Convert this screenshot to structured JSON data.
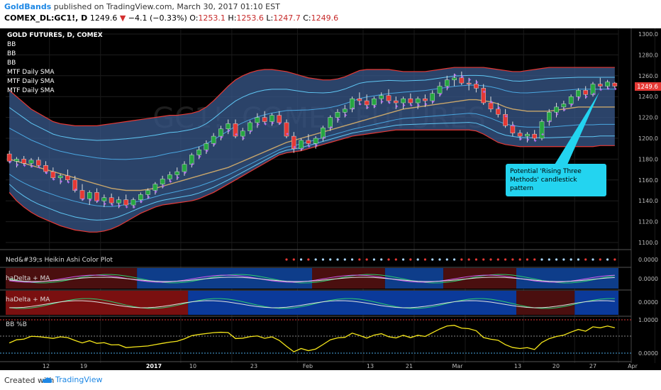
{
  "header": {
    "publisher": "GoldBands",
    "published_text": "published on TradingView.com, March 30, 2017 01:10 EST",
    "symbol": "COMEX_DL:GC1!, D",
    "price": "1249.6",
    "change": "−4.1 (−0.33%)",
    "o_label": "O:",
    "o_value": "1253.1",
    "h_label": "H:",
    "h_value": "1253.6",
    "l_label": "L:",
    "l_value": "1247.7",
    "c_label": "C:",
    "c_value": "1249.6"
  },
  "footer": {
    "created_text": "Created with",
    "brand": "TradingView"
  },
  "legend": {
    "title": "GOLD FUTURES, D, COMEX",
    "items": [
      "BB",
      "BB",
      "BB",
      "MTF Daily SMA",
      "MTF Daily SMA",
      "MTF Daily SMA"
    ]
  },
  "annotation": "Potential 'Rising Three Methods' candlestick pattern",
  "annotation_lines": [
    "Potential 'Rising Three",
    "Methods' candlestick",
    "pattern"
  ],
  "price_tag": "1249.6",
  "watermark": "GC1!, COMEX FUTURES",
  "panes": {
    "heikin": {
      "title": "Ned&#39;s Heikin Ashi Color Plot",
      "value": "0.0000"
    },
    "hadelta1": {
      "title": "haDelta + MA",
      "value": "0.0000"
    },
    "hadelta2": {
      "title": "haDelta + MA",
      "value": "0.0000"
    },
    "bbpct": {
      "title": "BB %B",
      "top_value": "1.0000",
      "bottom_value": "0.0000"
    }
  },
  "colors": {
    "up": "#26a641",
    "down": "#e53935",
    "upper_band": "#e53935",
    "band_fill": "#3a5a8c",
    "sma_mid": "#c8a66b",
    "inner_band": "#5fc6f3",
    "trail": "#b56cf0",
    "bbpct_line": "#f5e61a",
    "callout_bg": "#23d4f0"
  },
  "chart_data": {
    "type": "candlestick",
    "title": "GOLD FUTURES, D, COMEX",
    "y_ticks": [
      "1300.0",
      "1280.0",
      "1260.0",
      "1240.0",
      "1220.0",
      "1200.0",
      "1180.0",
      "1160.0",
      "1140.0",
      "1120.0",
      "1100.0"
    ],
    "ylim": [
      1100,
      1300
    ],
    "x_ticks": [
      "12",
      "19",
      "2017",
      "10",
      "23",
      "Feb",
      "13",
      "21",
      "Mar",
      "13",
      "20",
      "27",
      "Apr"
    ],
    "candles": [
      [
        1185,
        1188,
        1176,
        1178
      ],
      [
        1178,
        1182,
        1172,
        1180
      ],
      [
        1180,
        1183,
        1174,
        1176
      ],
      [
        1176,
        1181,
        1172,
        1179
      ],
      [
        1179,
        1182,
        1172,
        1174
      ],
      [
        1174,
        1178,
        1166,
        1168
      ],
      [
        1168,
        1172,
        1160,
        1162
      ],
      [
        1162,
        1166,
        1156,
        1164
      ],
      [
        1164,
        1170,
        1158,
        1160
      ],
      [
        1160,
        1164,
        1148,
        1150
      ],
      [
        1150,
        1156,
        1140,
        1142
      ],
      [
        1142,
        1150,
        1136,
        1148
      ],
      [
        1148,
        1152,
        1138,
        1140
      ],
      [
        1140,
        1146,
        1134,
        1143
      ],
      [
        1143,
        1147,
        1136,
        1138
      ],
      [
        1138,
        1144,
        1133,
        1141
      ],
      [
        1141,
        1146,
        1135,
        1136
      ],
      [
        1136,
        1143,
        1133,
        1141
      ],
      [
        1141,
        1148,
        1138,
        1146
      ],
      [
        1146,
        1152,
        1142,
        1150
      ],
      [
        1150,
        1158,
        1146,
        1156
      ],
      [
        1156,
        1164,
        1152,
        1161
      ],
      [
        1161,
        1168,
        1158,
        1165
      ],
      [
        1165,
        1172,
        1160,
        1168
      ],
      [
        1168,
        1178,
        1164,
        1175
      ],
      [
        1175,
        1186,
        1172,
        1184
      ],
      [
        1184,
        1192,
        1180,
        1189
      ],
      [
        1189,
        1198,
        1185,
        1195
      ],
      [
        1195,
        1205,
        1192,
        1202
      ],
      [
        1202,
        1212,
        1198,
        1209
      ],
      [
        1209,
        1218,
        1204,
        1214
      ],
      [
        1214,
        1218,
        1200,
        1202
      ],
      [
        1202,
        1210,
        1198,
        1207
      ],
      [
        1207,
        1217,
        1204,
        1215
      ],
      [
        1215,
        1224,
        1210,
        1220
      ],
      [
        1220,
        1226,
        1214,
        1216
      ],
      [
        1216,
        1224,
        1212,
        1222
      ],
      [
        1222,
        1226,
        1213,
        1215
      ],
      [
        1215,
        1218,
        1200,
        1202
      ],
      [
        1202,
        1206,
        1186,
        1190
      ],
      [
        1190,
        1200,
        1188,
        1198
      ],
      [
        1198,
        1204,
        1193,
        1195
      ],
      [
        1195,
        1202,
        1190,
        1200
      ],
      [
        1200,
        1212,
        1197,
        1210
      ],
      [
        1210,
        1222,
        1207,
        1220
      ],
      [
        1220,
        1228,
        1215,
        1225
      ],
      [
        1225,
        1232,
        1220,
        1228
      ],
      [
        1228,
        1240,
        1225,
        1238
      ],
      [
        1238,
        1244,
        1232,
        1236
      ],
      [
        1236,
        1242,
        1228,
        1232
      ],
      [
        1232,
        1240,
        1229,
        1238
      ],
      [
        1238,
        1244,
        1233,
        1241
      ],
      [
        1241,
        1247,
        1234,
        1236
      ],
      [
        1236,
        1240,
        1228,
        1234
      ],
      [
        1234,
        1240,
        1228,
        1238
      ],
      [
        1238,
        1243,
        1232,
        1234
      ],
      [
        1234,
        1240,
        1228,
        1238
      ],
      [
        1238,
        1242,
        1230,
        1236
      ],
      [
        1236,
        1246,
        1233,
        1243
      ],
      [
        1243,
        1254,
        1240,
        1250
      ],
      [
        1250,
        1260,
        1246,
        1256
      ],
      [
        1256,
        1262,
        1250,
        1258
      ],
      [
        1258,
        1264,
        1251,
        1253
      ],
      [
        1253,
        1258,
        1246,
        1252
      ],
      [
        1252,
        1256,
        1244,
        1248
      ],
      [
        1248,
        1252,
        1232,
        1234
      ],
      [
        1234,
        1240,
        1225,
        1228
      ],
      [
        1228,
        1234,
        1220,
        1223
      ],
      [
        1223,
        1228,
        1210,
        1212
      ],
      [
        1212,
        1216,
        1202,
        1205
      ],
      [
        1205,
        1208,
        1198,
        1202
      ],
      [
        1202,
        1206,
        1196,
        1204
      ],
      [
        1204,
        1208,
        1198,
        1200
      ],
      [
        1200,
        1218,
        1198,
        1216
      ],
      [
        1216,
        1228,
        1212,
        1225
      ],
      [
        1225,
        1234,
        1220,
        1230
      ],
      [
        1230,
        1236,
        1226,
        1233
      ],
      [
        1233,
        1242,
        1230,
        1240
      ],
      [
        1240,
        1248,
        1236,
        1246
      ],
      [
        1246,
        1250,
        1238,
        1242
      ],
      [
        1242,
        1254,
        1240,
        1252
      ],
      [
        1252,
        1258,
        1246,
        1250
      ],
      [
        1250,
        1256,
        1247,
        1254
      ],
      [
        1253,
        1254,
        1248,
        1250
      ]
    ],
    "bb_upper": [
      1246,
      1240,
      1234,
      1228,
      1224,
      1220,
      1216,
      1214,
      1213,
      1212,
      1212,
      1212,
      1212,
      1213,
      1214,
      1215,
      1216,
      1217,
      1218,
      1219,
      1220,
      1221,
      1222,
      1222,
      1223,
      1224,
      1226,
      1230,
      1236,
      1243,
      1250,
      1256,
      1260,
      1263,
      1265,
      1266,
      1266,
      1265,
      1264,
      1262,
      1260,
      1258,
      1257,
      1256,
      1256,
      1257,
      1259,
      1262,
      1265,
      1266,
      1266,
      1266,
      1266,
      1265,
      1264,
      1264,
      1264,
      1264,
      1265,
      1266,
      1267,
      1268,
      1268,
      1268,
      1268,
      1268,
      1267,
      1266,
      1265,
      1264,
      1264,
      1265,
      1266,
      1267,
      1268,
      1268,
      1268,
      1268,
      1268,
      1268,
      1268,
      1268,
      1268,
      1268
    ],
    "bb_lower": [
      1148,
      1140,
      1134,
      1129,
      1125,
      1122,
      1119,
      1116,
      1114,
      1112,
      1111,
      1110,
      1110,
      1111,
      1113,
      1116,
      1120,
      1124,
      1128,
      1131,
      1134,
      1136,
      1137,
      1138,
      1139,
      1140,
      1142,
      1145,
      1148,
      1152,
      1156,
      1160,
      1164,
      1168,
      1172,
      1176,
      1180,
      1184,
      1186,
      1187,
      1188,
      1190,
      1192,
      1194,
      1196,
      1198,
      1200,
      1202,
      1203,
      1204,
      1205,
      1206,
      1207,
      1208,
      1208,
      1208,
      1208,
      1208,
      1208,
      1208,
      1208,
      1208,
      1208,
      1208,
      1207,
      1204,
      1200,
      1196,
      1194,
      1193,
      1192,
      1192,
      1192,
      1192,
      1192,
      1192,
      1192,
      1192,
      1192,
      1192,
      1192,
      1193,
      1193,
      1193
    ],
    "sma_mid": [
      1180,
      1178,
      1176,
      1174,
      1172,
      1170,
      1168,
      1166,
      1164,
      1162,
      1160,
      1158,
      1156,
      1154,
      1152,
      1151,
      1150,
      1150,
      1150,
      1151,
      1152,
      1154,
      1156,
      1158,
      1160,
      1162,
      1164,
      1166,
      1168,
      1170,
      1172,
      1175,
      1178,
      1181,
      1184,
      1187,
      1190,
      1193,
      1196,
      1198,
      1200,
      1202,
      1204,
      1206,
      1208,
      1210,
      1212,
      1214,
      1216,
      1218,
      1220,
      1222,
      1224,
      1226,
      1228,
      1229,
      1230,
      1231,
      1232,
      1233,
      1234,
      1235,
      1236,
      1237,
      1237,
      1236,
      1235,
      1233,
      1230,
      1228,
      1227,
      1226,
      1226,
      1226,
      1226,
      1227,
      1228,
      1229,
      1230,
      1230,
      1230,
      1230,
      1230,
      1230
    ]
  }
}
